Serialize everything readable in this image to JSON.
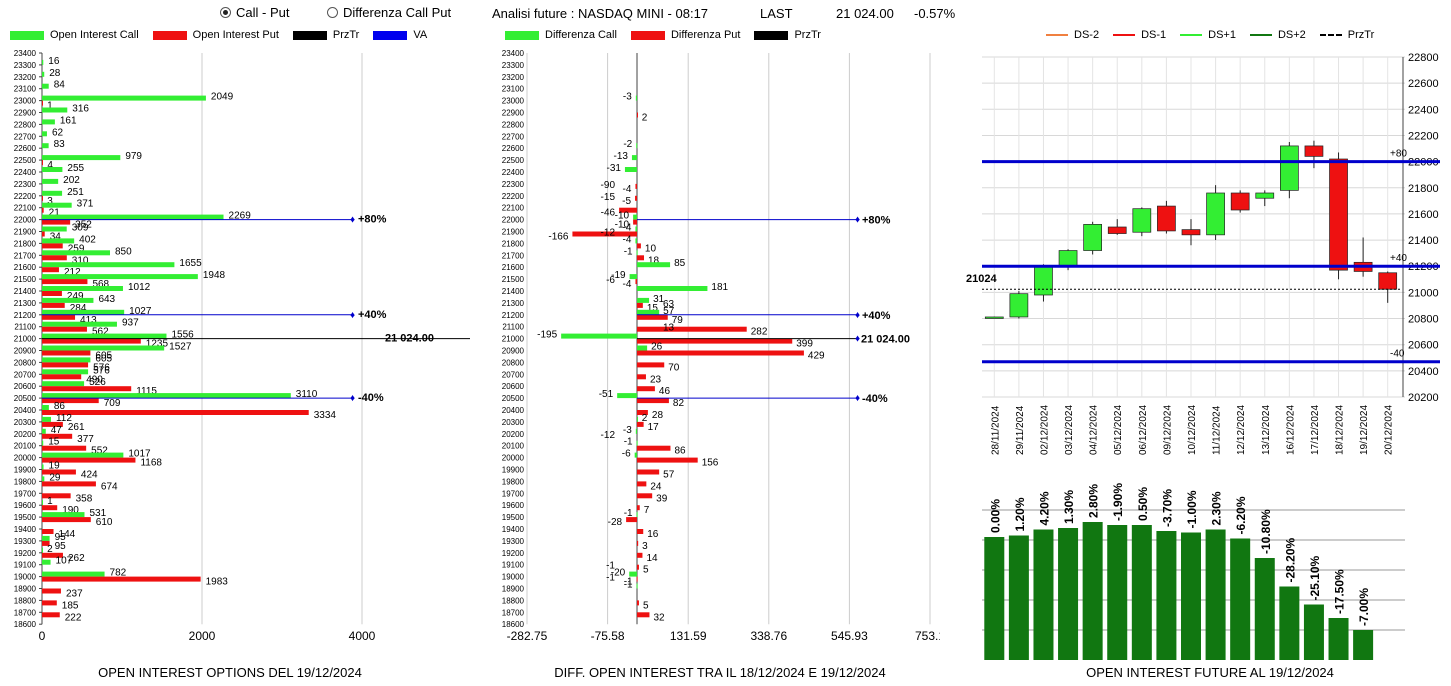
{
  "header": {
    "radio_call_put": "Call - Put",
    "radio_diff": "Differenza Call Put",
    "radio_selected": "call_put",
    "analysis": "Analisi future : NASDAQ MINI - 08:17",
    "last_label": "LAST",
    "last_value": "21 024.00",
    "change": "-0.57%"
  },
  "colors": {
    "call": "#33ee33",
    "put": "#ee1111",
    "prztr": "#000000",
    "va": "#0000ee",
    "dark_green": "#117711",
    "line_blue": "#0000cc"
  },
  "chart_data": [
    {
      "type": "bar",
      "orientation": "horizontal",
      "title": "OPEN INTEREST OPTIONS DEL 19/12/2024",
      "legend": [
        "Open Interest Call",
        "Open Interest Put",
        "PrzTr",
        "VA"
      ],
      "categories": [
        "23400",
        "23300",
        "23200",
        "23100",
        "23000",
        "22900",
        "22800",
        "22700",
        "22600",
        "22500",
        "22400",
        "22300",
        "22200",
        "22100",
        "22000",
        "21900",
        "21800",
        "21700",
        "21600",
        "21500",
        "21400",
        "21300",
        "21200",
        "21100",
        "21000",
        "20900",
        "20800",
        "20700",
        "20600",
        "20500",
        "20400",
        "20300",
        "20200",
        "20100",
        "20000",
        "19900",
        "19800",
        "19700",
        "19600",
        "19500",
        "19400",
        "19300",
        "19200",
        "19100",
        "19000",
        "18900",
        "18800",
        "18700",
        "18600"
      ],
      "series": [
        {
          "name": "Open Interest Call",
          "values": [
            null,
            16,
            28,
            84,
            2049,
            316,
            161,
            62,
            83,
            979,
            255,
            202,
            251,
            371,
            2269,
            309,
            402,
            850,
            1655,
            1948,
            1012,
            643,
            1027,
            937,
            1556,
            1527,
            605,
            576,
            526,
            3110,
            86,
            112,
            47,
            15,
            1017,
            19,
            29,
            null,
            1,
            531,
            null,
            95,
            2,
            107,
            782,
            null,
            null,
            null,
            null
          ]
        },
        {
          "name": "Open Interest Put",
          "values": [
            null,
            null,
            null,
            null,
            1,
            null,
            null,
            null,
            null,
            4,
            null,
            null,
            3,
            21,
            352,
            34,
            259,
            310,
            212,
            568,
            249,
            284,
            413,
            562,
            1235,
            605,
            576,
            490,
            1115,
            709,
            3334,
            261,
            377,
            552,
            1168,
            424,
            674,
            358,
            190,
            610,
            144,
            95,
            262,
            null,
            1983,
            237,
            185,
            222,
            null
          ]
        }
      ],
      "xlabel": "",
      "xticks": [
        "0",
        "2000",
        "4000"
      ],
      "xlim": [
        0,
        4000
      ],
      "annotations": [
        {
          "label": "+80%",
          "at": "22000"
        },
        {
          "label": "+40%",
          "at": "21200"
        },
        {
          "label": "21 024.00",
          "at": "21000"
        },
        {
          "label": "-40%",
          "at": "20500"
        }
      ]
    },
    {
      "type": "bar",
      "orientation": "horizontal",
      "title": "DIFF. OPEN INTEREST TRA IL 18/12/2024 E 19/12/2024",
      "legend": [
        "Differenza Call",
        "Differenza Put",
        "PrzTr"
      ],
      "categories": [
        "23400",
        "23300",
        "23200",
        "23100",
        "23000",
        "22900",
        "22800",
        "22700",
        "22600",
        "22500",
        "22400",
        "22300",
        "22200",
        "22100",
        "22000",
        "21900",
        "21800",
        "21700",
        "21600",
        "21500",
        "21400",
        "21300",
        "21200",
        "21100",
        "21000",
        "20900",
        "20800",
        "20700",
        "20600",
        "20500",
        "20400",
        "20300",
        "20200",
        "20100",
        "20000",
        "19900",
        "19800",
        "19700",
        "19600",
        "19500",
        "19400",
        "19300",
        "19200",
        "19100",
        "19000",
        "18900",
        "18800",
        "18700",
        "18600"
      ],
      "series": [
        {
          "name": "Differenza Call",
          "values": [
            null,
            null,
            null,
            null,
            -3,
            null,
            null,
            null,
            -2,
            -13,
            -31,
            null,
            null,
            null,
            -10,
            -4,
            -4,
            -1,
            85,
            -19,
            181,
            31,
            57,
            null,
            -195,
            26,
            null,
            null,
            null,
            -51,
            null,
            2,
            -3,
            -1,
            -6,
            null,
            null,
            null,
            null,
            -1,
            null,
            null,
            null,
            null,
            -20,
            -1,
            null,
            null,
            null
          ]
        },
        {
          "name": "Differenza Put",
          "values": [
            null,
            null,
            null,
            null,
            null,
            2,
            null,
            null,
            null,
            null,
            null,
            -4,
            -5,
            -46,
            -10,
            -166,
            10,
            18,
            null,
            -4,
            null,
            15,
            79,
            282,
            399,
            429,
            70,
            23,
            46,
            82,
            28,
            17,
            null,
            86,
            156,
            57,
            24,
            39,
            7,
            -28,
            16,
            3,
            14,
            5,
            -1,
            null,
            5,
            32,
            null
          ]
        }
      ],
      "xlabel": "",
      "xticks": [
        "-282.75",
        "-75.58",
        "131.59",
        "338.76",
        "545.93",
        "753.1"
      ],
      "xlim": [
        -282.75,
        753.1
      ],
      "extra_labels": [
        {
          "at": "22300",
          "label": "-90"
        },
        {
          "at": "22200",
          "label": "-15"
        },
        {
          "at": "21900",
          "label": "-12"
        },
        {
          "at": "21500",
          "label": "-6"
        },
        {
          "at": "21300",
          "label": "63"
        },
        {
          "at": "21100",
          "label": "13"
        },
        {
          "at": "20200",
          "label": "-12"
        },
        {
          "at": "19000",
          "label": "-1"
        },
        {
          "at": "19100",
          "label": "-1"
        }
      ],
      "annotations": [
        {
          "label": "+80%",
          "at": "22000"
        },
        {
          "label": "+40%",
          "at": "21200"
        },
        {
          "label": "21 024.00",
          "at": "21000"
        },
        {
          "label": "-40%",
          "at": "20500"
        }
      ]
    },
    {
      "type": "candlestick",
      "legend": [
        "DS-2",
        "DS-1",
        "DS+1",
        "DS+2",
        "PrzTr"
      ],
      "dates": [
        "28/11/2024",
        "29/11/2024",
        "02/12/2024",
        "03/12/2024",
        "04/12/2024",
        "05/12/2024",
        "06/12/2024",
        "09/12/2024",
        "10/12/2024",
        "11/12/2024",
        "12/12/2024",
        "13/12/2024",
        "16/12/2024",
        "17/12/2024",
        "18/12/2024",
        "19/12/2024",
        "20/12/2024"
      ],
      "ohlc": [
        [
          20810,
          20815,
          20805,
          20812
        ],
        [
          20812,
          21010,
          20800,
          20990
        ],
        [
          20980,
          21215,
          20930,
          21200
        ],
        [
          21200,
          21330,
          21170,
          21320
        ],
        [
          21320,
          21540,
          21290,
          21520
        ],
        [
          21500,
          21560,
          21440,
          21450
        ],
        [
          21460,
          21650,
          21430,
          21640
        ],
        [
          21660,
          21700,
          21450,
          21470
        ],
        [
          21480,
          21560,
          21360,
          21440
        ],
        [
          21440,
          21820,
          21400,
          21760
        ],
        [
          21760,
          21780,
          21610,
          21630
        ],
        [
          21720,
          21780,
          21660,
          21760
        ],
        [
          21780,
          22150,
          21720,
          22120
        ],
        [
          22120,
          22160,
          21950,
          22040
        ],
        [
          22020,
          22070,
          21100,
          21170
        ],
        [
          21230,
          21420,
          21120,
          21160
        ],
        [
          21150,
          21160,
          20920,
          21024
        ]
      ],
      "ylim": [
        20200,
        22800
      ],
      "yticks": [
        "20200",
        "20400",
        "20600",
        "20800",
        "21000",
        "21200",
        "21400",
        "21600",
        "21800",
        "22000",
        "22200",
        "22400",
        "22600",
        "22800"
      ],
      "levels": [
        {
          "label": "+80",
          "value": 22000
        },
        {
          "label": "+40",
          "value": 21200
        },
        {
          "label": "-40",
          "value": 20470
        }
      ],
      "last_price_label": "21024",
      "last_price": 21024
    },
    {
      "type": "bar",
      "title": "OPEN INTEREST FUTURE AL 19/12/2024",
      "categories": [
        "28/11/2024",
        "29/11/2024",
        "02/12/2024",
        "03/12/2024",
        "04/12/2024",
        "05/12/2024",
        "06/12/2024",
        "09/12/2024",
        "10/12/2024",
        "11/12/2024",
        "12/12/2024",
        "13/12/2024",
        "16/12/2024",
        "17/12/2024",
        "18/12/2024",
        "19/12/2024",
        "20/12/2024"
      ],
      "values": [
        0.0,
        1.2,
        4.2,
        1.3,
        2.8,
        -1.9,
        0.5,
        -3.7,
        -1.0,
        2.3,
        -6.2,
        -10.8,
        -28.2,
        -25.1,
        -17.5,
        -7.0,
        null
      ],
      "labels": [
        "0.00%",
        "1.20%",
        "4.20%",
        "1.30%",
        "2.80%",
        "-1.90%",
        "0.50%",
        "-3.70%",
        "-1.00%",
        "2.30%",
        "-6.20%",
        "-10.80%",
        "-28.20%",
        "-25.10%",
        "-17.50%",
        "-7.00%",
        ""
      ],
      "relative_heights": [
        0.82,
        0.83,
        0.87,
        0.88,
        0.92,
        0.9,
        0.9,
        0.86,
        0.85,
        0.87,
        0.81,
        0.68,
        0.49,
        0.37,
        0.28,
        0.2,
        0.0
      ]
    }
  ]
}
